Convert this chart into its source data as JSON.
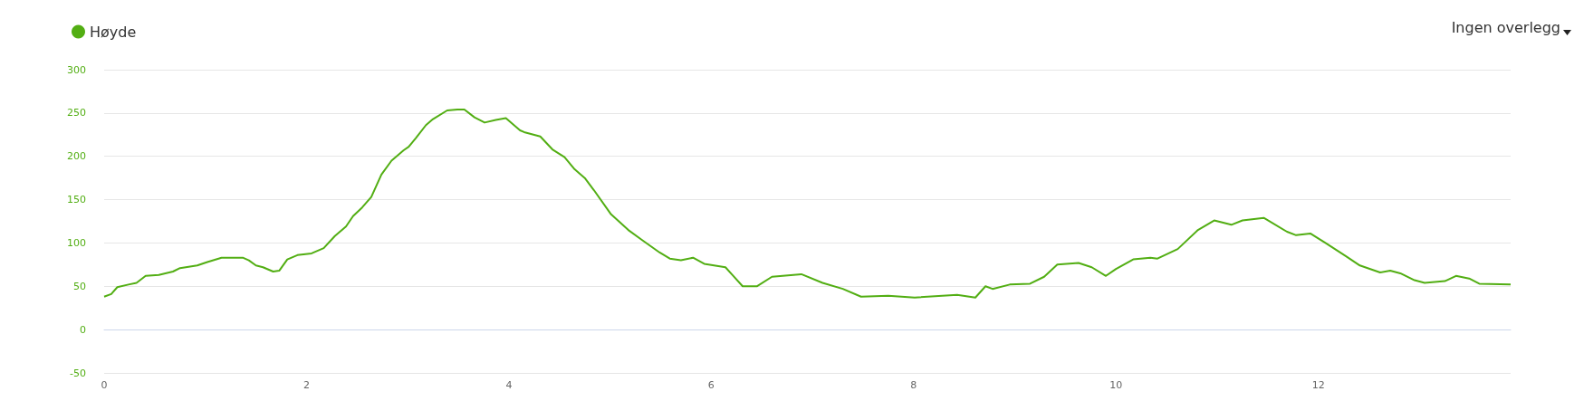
{
  "chart_data": {
    "type": "line",
    "annotations": [
      "Ingen overlegg"
    ],
    "x": [
      0,
      0.07,
      0.13,
      0.24,
      0.32,
      0.41,
      0.54,
      0.68,
      0.75,
      0.92,
      1.02,
      1.16,
      1.37,
      1.43,
      1.5,
      1.57,
      1.67,
      1.73,
      1.81,
      1.91,
      2.05,
      2.17,
      2.28,
      2.39,
      2.46,
      2.55,
      2.64,
      2.74,
      2.84,
      2.96,
      3.01,
      3.08,
      3.18,
      3.25,
      3.39,
      3.49,
      3.56,
      3.66,
      3.76,
      3.87,
      3.97,
      4.11,
      4.15,
      4.31,
      4.43,
      4.55,
      4.65,
      4.75,
      4.84,
      5.01,
      5.18,
      5.32,
      5.49,
      5.59,
      5.7,
      5.82,
      5.93,
      6.14,
      6.21,
      6.31,
      6.45,
      6.6,
      6.89,
      7.1,
      7.3,
      7.48,
      7.75,
      8.01,
      8.43,
      8.61,
      8.71,
      8.78,
      8.95,
      9.15,
      9.29,
      9.42,
      9.63,
      9.76,
      9.9,
      10.0,
      10.17,
      10.34,
      10.41,
      10.61,
      10.81,
      10.97,
      11.14,
      11.25,
      11.46,
      11.69,
      11.78,
      11.92,
      12.07,
      12.27,
      12.41,
      12.61,
      12.71,
      12.81,
      12.95,
      13.05,
      13.25,
      13.36,
      13.49,
      13.59,
      13.9
    ],
    "series": [
      {
        "name": "Høyde",
        "color": "#52ae13",
        "values": [
          38,
          41,
          49,
          52,
          54,
          62,
          63,
          67,
          71,
          74,
          78,
          83,
          83,
          80,
          74,
          72,
          67,
          68,
          81,
          86,
          88,
          94,
          108,
          119,
          131,
          141,
          153,
          179,
          195,
          207,
          211,
          221,
          236,
          243,
          253,
          254,
          254,
          245,
          239,
          242,
          244,
          230,
          228,
          223,
          208,
          199,
          185,
          175,
          161,
          133,
          115,
          103,
          89,
          82,
          80,
          83,
          76,
          72,
          63,
          50,
          50,
          61,
          64,
          54,
          47,
          38,
          39,
          37,
          40,
          37,
          50,
          47,
          52,
          53,
          61,
          75,
          77,
          72,
          62,
          70,
          81,
          83,
          82,
          93,
          115,
          126,
          121,
          126,
          129,
          113,
          109,
          111,
          100,
          85,
          74,
          66,
          68,
          65,
          57,
          54,
          56,
          62,
          59,
          53,
          52
        ]
      }
    ],
    "xlim": [
      0,
      13.9
    ],
    "xticks": [
      0,
      2,
      4,
      6,
      8,
      10,
      12
    ],
    "ylim": [
      -50,
      300
    ],
    "yticks": [
      -50,
      0,
      50,
      100,
      150,
      200,
      250,
      300
    ],
    "grid": "y",
    "legend": "top left",
    "marker": "none",
    "line_style": "solid"
  }
}
